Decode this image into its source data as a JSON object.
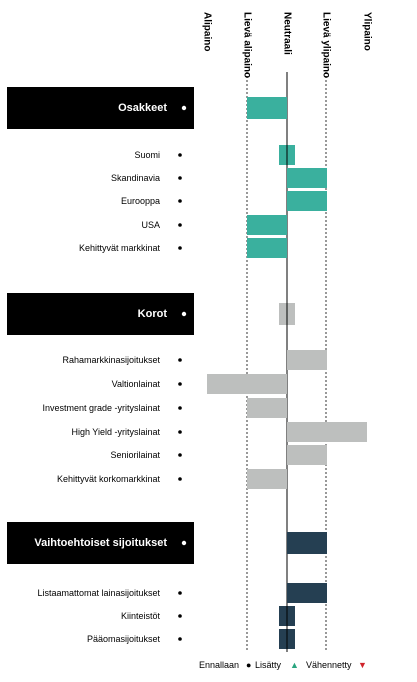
{
  "chart_data": {
    "type": "bar",
    "title": "",
    "scale": {
      "levels": [
        -2,
        -1,
        0,
        1,
        2
      ],
      "labels": [
        "Alipaino",
        "Lievä alipaino",
        "Neutraali",
        "Lievä ylipaino",
        "Ylipaino"
      ]
    },
    "groups": [
      {
        "name": "Osakkeet",
        "status": "Ennallaan",
        "color": "#3ab09e",
        "value": -1,
        "items": [
          {
            "name": "Suomi",
            "status": "Ennallaan",
            "value": -0.2,
            "value_end": 0.2
          },
          {
            "name": "Skandinavia",
            "status": "Ennallaan",
            "value": 1
          },
          {
            "name": "Eurooppa",
            "status": "Ennallaan",
            "value": 1
          },
          {
            "name": "USA",
            "status": "Ennallaan",
            "value": -1
          },
          {
            "name": "Kehittyvät markkinat",
            "status": "Ennallaan",
            "value": -1
          }
        ]
      },
      {
        "name": "Korot",
        "status": "Ennallaan",
        "color": "#bdbfbe",
        "value": -0.2,
        "value_end": 0.2,
        "items": [
          {
            "name": "Rahamarkkinasijoitukset",
            "status": "Ennallaan",
            "value": 1
          },
          {
            "name": "Valtionlainat",
            "status": "Ennallaan",
            "value": -2
          },
          {
            "name": "Investment grade -yrityslainat",
            "status": "Ennallaan",
            "value": -1
          },
          {
            "name": "High Yield -yrityslainat",
            "status": "Ennallaan",
            "value": 2
          },
          {
            "name": "Seniorilainat",
            "status": "Ennallaan",
            "value": 1
          },
          {
            "name": "Kehittyvät korkomarkkinat",
            "status": "Ennallaan",
            "value": -1
          }
        ]
      },
      {
        "name": "Vaihtoehtoiset sijoitukset",
        "status": "Ennallaan",
        "color": "#253f52",
        "value": 1,
        "items": [
          {
            "name": "Listaamattomat lainasijoitukset",
            "status": "Ennallaan",
            "value": 1
          },
          {
            "name": "Kiinteistöt",
            "status": "Ennallaan",
            "value": -0.2,
            "value_end": 0.2
          },
          {
            "name": "Pääomasijoitukset",
            "status": "Ennallaan",
            "value": -0.2,
            "value_end": 0.2
          }
        ]
      }
    ],
    "legend": {
      "placement": "bottom-right",
      "items": [
        {
          "label": "Ennallaan",
          "symbol": "●",
          "color": "#000000"
        },
        {
          "label": "Lisätty",
          "symbol": "▲",
          "color": "#2aa57f"
        },
        {
          "label": "Vähennetty",
          "symbol": "▼",
          "color": "#d0242b"
        }
      ]
    }
  }
}
